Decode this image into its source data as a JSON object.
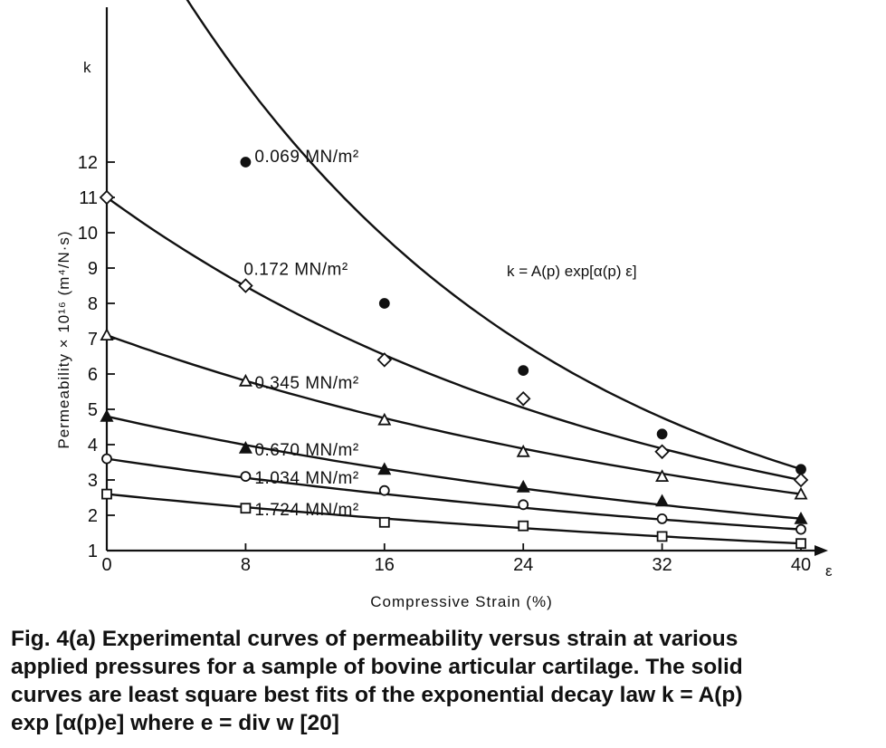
{
  "chart_data": {
    "type": "scatter",
    "xlabel": "Compressive Strain (%)",
    "x_axis_symbol": "ε",
    "ylabel": "Permeability × 10¹⁶ (m⁴/N·s)",
    "y_axis_symbol": "k",
    "xlim": [
      0,
      40
    ],
    "ylim": [
      1,
      13
    ],
    "x_ticks": [
      "0",
      "8",
      "16",
      "24",
      "32",
      "40"
    ],
    "y_ticks": [
      "1",
      "2",
      "3",
      "4",
      "5",
      "6",
      "7",
      "8",
      "9",
      "10",
      "11",
      "12"
    ],
    "annotation": "k = A(p) exp[α(p) ε]",
    "series": [
      {
        "name": "0.069 MN/m²",
        "marker": "filled-circle",
        "points": [
          [
            8,
            12.0
          ],
          [
            16,
            8.0
          ],
          [
            24,
            6.1
          ],
          [
            32,
            4.3
          ],
          [
            40,
            3.3
          ]
        ],
        "fit": {
          "A": 20.5,
          "alpha": -0.0456,
          "x_range": [
            1,
            40
          ]
        }
      },
      {
        "name": "0.172 MN/m²",
        "marker": "open-diamond",
        "points": [
          [
            0,
            11.0
          ],
          [
            8,
            8.5
          ],
          [
            16,
            6.4
          ],
          [
            24,
            5.3
          ],
          [
            32,
            3.8
          ],
          [
            40,
            3.0
          ]
        ],
        "fit": {
          "A": 11.0,
          "alpha": -0.0325,
          "x_range": [
            0,
            40
          ]
        }
      },
      {
        "name": "0.345 MN/m²",
        "marker": "open-triangle",
        "points": [
          [
            0,
            7.1
          ],
          [
            8,
            5.8
          ],
          [
            16,
            4.7
          ],
          [
            24,
            3.8
          ],
          [
            32,
            3.1
          ],
          [
            40,
            2.6
          ]
        ],
        "fit": {
          "A": 7.1,
          "alpha": -0.0251,
          "x_range": [
            0,
            40
          ]
        }
      },
      {
        "name": "0.670 MN/m²",
        "marker": "filled-triangle",
        "points": [
          [
            0,
            4.8
          ],
          [
            8,
            3.9
          ],
          [
            16,
            3.3
          ],
          [
            24,
            2.8
          ],
          [
            32,
            2.4
          ],
          [
            40,
            1.9
          ]
        ],
        "fit": {
          "A": 4.8,
          "alpha": -0.0231,
          "x_range": [
            0,
            40
          ]
        }
      },
      {
        "name": "1.034 MN/m²",
        "marker": "open-circle",
        "points": [
          [
            0,
            3.6
          ],
          [
            8,
            3.1
          ],
          [
            16,
            2.7
          ],
          [
            24,
            2.3
          ],
          [
            32,
            1.9
          ],
          [
            40,
            1.6
          ]
        ],
        "fit": {
          "A": 3.6,
          "alpha": -0.0203,
          "x_range": [
            0,
            40
          ]
        }
      },
      {
        "name": "1.724 MN/m²",
        "marker": "open-square",
        "points": [
          [
            0,
            2.6
          ],
          [
            8,
            2.2
          ],
          [
            16,
            1.8
          ],
          [
            24,
            1.7
          ],
          [
            32,
            1.4
          ],
          [
            40,
            1.2
          ]
        ],
        "fit": {
          "A": 2.6,
          "alpha": -0.0193,
          "x_range": [
            0,
            40
          ]
        }
      }
    ]
  },
  "caption": {
    "line1": "Fig. 4(a)   Experimental curves of permeability versus strain at various",
    "line2": "applied pressures for a sample of bovine articular cartilage. The solid",
    "line3": "curves are least square best fits of the exponential decay law k = A(p)",
    "line4": "exp [α(p)e] where e = div w [20]"
  }
}
